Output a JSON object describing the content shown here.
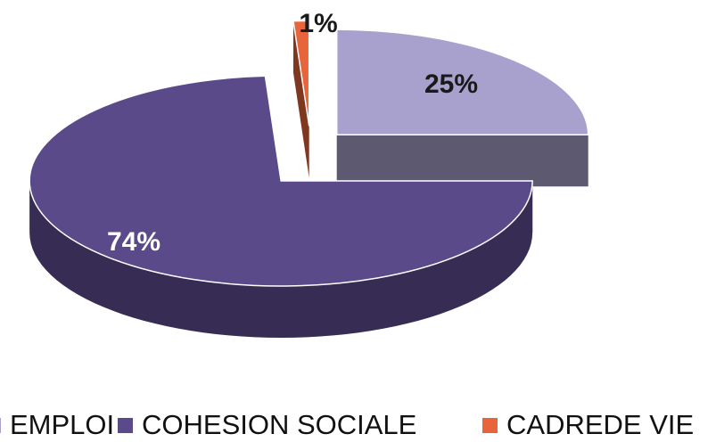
{
  "chart_data": {
    "type": "pie",
    "categories": [
      "EMPLOI",
      "COHESION SOCIALE",
      "CADREDE VIE"
    ],
    "values": [
      25,
      74,
      1
    ],
    "value_labels": [
      "25%",
      "74%",
      "1%"
    ],
    "colors": [
      "#a9a1cd",
      "#5b4a8a",
      "#e8643a"
    ],
    "legend": "bottom"
  }
}
